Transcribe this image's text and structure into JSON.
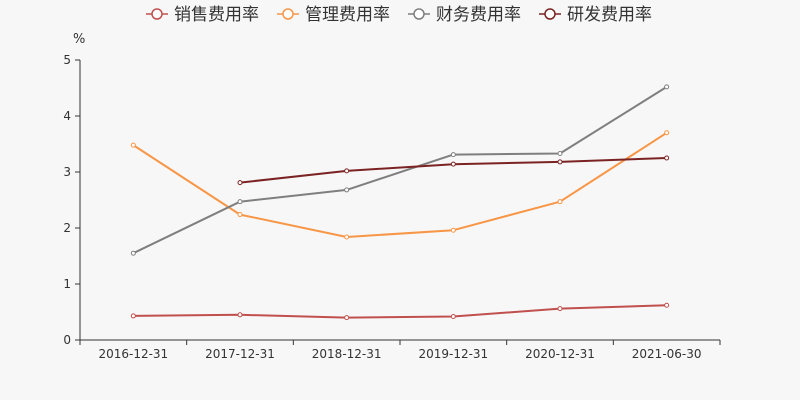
{
  "chart_data": {
    "type": "line",
    "ylabel": "%",
    "ylim": [
      0,
      5
    ],
    "yticks": [
      0,
      1,
      2,
      3,
      4,
      5
    ],
    "legend_position": "top",
    "grid": false,
    "categories": [
      "2016-12-31",
      "2017-12-31",
      "2018-12-31",
      "2019-12-31",
      "2020-12-31",
      "2021-06-30"
    ],
    "series": [
      {
        "name": "销售费用率",
        "color": "#c0504d",
        "values": [
          0.43,
          0.45,
          0.4,
          0.42,
          0.56,
          0.62
        ]
      },
      {
        "name": "管理费用率",
        "color": "#f79646",
        "values": [
          3.48,
          2.24,
          1.84,
          1.96,
          2.47,
          3.7
        ]
      },
      {
        "name": "财务费用率",
        "color": "#7f7f7f",
        "values": [
          1.55,
          2.47,
          2.68,
          3.31,
          3.33,
          4.52
        ]
      },
      {
        "name": "研发费用率",
        "color": "#7b2323",
        "values": [
          null,
          2.81,
          3.02,
          3.14,
          3.18,
          3.25
        ]
      }
    ]
  }
}
